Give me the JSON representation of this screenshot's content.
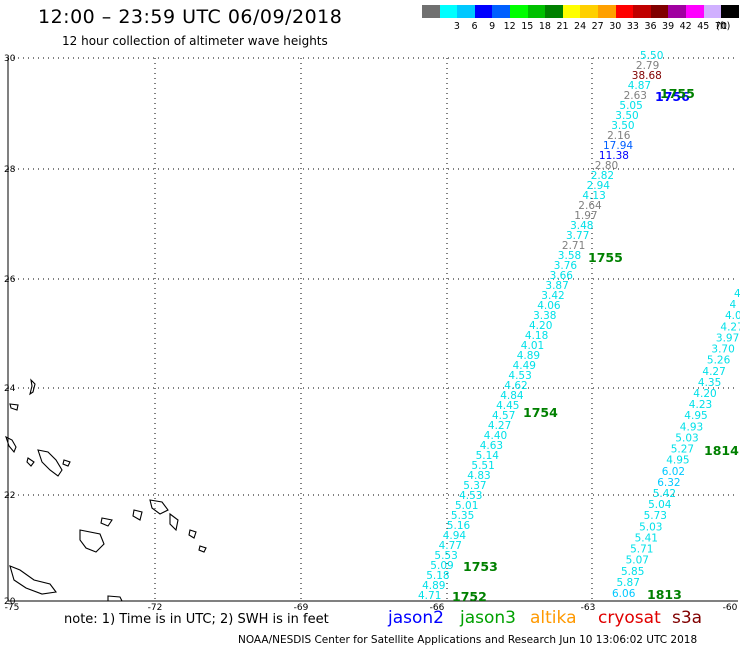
{
  "header": {
    "title": "12:00 – 23:59 UTC 06/09/2018",
    "subtitle": "12 hour collection of altimeter wave heights"
  },
  "colorbar": {
    "unit": "(ft)",
    "items": [
      {
        "label": "",
        "color": "#707070"
      },
      {
        "label": "3",
        "color": "#00ffff"
      },
      {
        "label": "6",
        "color": "#00c8ff"
      },
      {
        "label": "9",
        "color": "#0000ff"
      },
      {
        "label": "12",
        "color": "#0060ff"
      },
      {
        "label": "15",
        "color": "#00ff00"
      },
      {
        "label": "18",
        "color": "#00c000"
      },
      {
        "label": "21",
        "color": "#008000"
      },
      {
        "label": "24",
        "color": "#ffff00"
      },
      {
        "label": "27",
        "color": "#ffd000"
      },
      {
        "label": "30",
        "color": "#ffa000"
      },
      {
        "label": "33",
        "color": "#ff0000"
      },
      {
        "label": "36",
        "color": "#c00000"
      },
      {
        "label": "39",
        "color": "#800000"
      },
      {
        "label": "42",
        "color": "#a000a0"
      },
      {
        "label": "45",
        "color": "#ff00ff"
      },
      {
        "label": "70",
        "color": "#d0b0ff"
      },
      {
        "label": "",
        "color": "#000000"
      }
    ]
  },
  "map": {
    "lon_ticks": [
      "-75",
      "-72",
      "-69",
      "-66",
      "-63",
      "-60"
    ],
    "lat_ticks": [
      "30",
      "28",
      "26",
      "24",
      "22",
      "20"
    ]
  },
  "track_a": [
    {
      "text": "5.50",
      "color": "#00e0e8"
    },
    {
      "text": "2.79",
      "color": "#808080"
    },
    {
      "text": "38.68",
      "color": "#800000"
    },
    {
      "text": "4.87",
      "color": "#00e0e8"
    },
    {
      "text": "2.63",
      "color": "#808080"
    },
    {
      "text": "5.05",
      "color": "#00e0e8"
    },
    {
      "text": "3.50",
      "color": "#00e0e8"
    },
    {
      "text": "3.50",
      "color": "#00e0e8"
    },
    {
      "text": "2.16",
      "color": "#808080"
    },
    {
      "text": "17.94",
      "color": "#0060ff"
    },
    {
      "text": "11.38",
      "color": "#0000ff"
    },
    {
      "text": "2.80",
      "color": "#808080"
    },
    {
      "text": "2.82",
      "color": "#00e0e8"
    },
    {
      "text": "2.94",
      "color": "#00e0e8"
    },
    {
      "text": "4.13",
      "color": "#00e0e8"
    },
    {
      "text": "2.64",
      "color": "#808080"
    },
    {
      "text": "1.97",
      "color": "#808080"
    },
    {
      "text": "3.48",
      "color": "#00e0e8"
    },
    {
      "text": "3.77",
      "color": "#00e0e8"
    },
    {
      "text": "2.71",
      "color": "#808080"
    },
    {
      "text": "3.58",
      "color": "#00e0e8"
    },
    {
      "text": "3.76",
      "color": "#00e0e8"
    },
    {
      "text": "3.66",
      "color": "#00e0e8"
    },
    {
      "text": "3.87",
      "color": "#00e0e8"
    },
    {
      "text": "3.42",
      "color": "#00e0e8"
    },
    {
      "text": "4.06",
      "color": "#00e0e8"
    },
    {
      "text": "3.38",
      "color": "#00e0e8"
    },
    {
      "text": "4.20",
      "color": "#00e0e8"
    },
    {
      "text": "4.18",
      "color": "#00e0e8"
    },
    {
      "text": "4.01",
      "color": "#00e0e8"
    },
    {
      "text": "4.89",
      "color": "#00e0e8"
    },
    {
      "text": "4.49",
      "color": "#00e0e8"
    },
    {
      "text": "4.53",
      "color": "#00e0e8"
    },
    {
      "text": "4.62",
      "color": "#00e0e8"
    },
    {
      "text": "4.84",
      "color": "#00e0e8"
    },
    {
      "text": "4.45",
      "color": "#00e0e8"
    },
    {
      "text": "4.57",
      "color": "#00e0e8"
    },
    {
      "text": "4.27",
      "color": "#00e0e8"
    },
    {
      "text": "4.40",
      "color": "#00e0e8"
    },
    {
      "text": "4.63",
      "color": "#00e0e8"
    },
    {
      "text": "5.14",
      "color": "#00e0e8"
    },
    {
      "text": "5.51",
      "color": "#00e0e8"
    },
    {
      "text": "4.83",
      "color": "#00e0e8"
    },
    {
      "text": "5.37",
      "color": "#00e0e8"
    },
    {
      "text": "4.53",
      "color": "#00e0e8"
    },
    {
      "text": "5.01",
      "color": "#00e0e8"
    },
    {
      "text": "5.35",
      "color": "#00e0e8"
    },
    {
      "text": "5.16",
      "color": "#00e0e8"
    },
    {
      "text": "4.94",
      "color": "#00e0e8"
    },
    {
      "text": "4.77",
      "color": "#00e0e8"
    },
    {
      "text": "5.53",
      "color": "#00e0e8"
    },
    {
      "text": "5.09",
      "color": "#00e0e8"
    },
    {
      "text": "5.18",
      "color": "#00e0e8"
    },
    {
      "text": "4.89",
      "color": "#00e0e8"
    },
    {
      "text": "4.71",
      "color": "#00e0e8"
    }
  ],
  "track_b": [
    {
      "text": "4",
      "color": "#00e0e8"
    },
    {
      "text": "4",
      "color": "#00e0e8"
    },
    {
      "text": "4.07",
      "color": "#00e0e8"
    },
    {
      "text": "4.27",
      "color": "#00e0e8"
    },
    {
      "text": "3.97",
      "color": "#00e0e8"
    },
    {
      "text": "3.70",
      "color": "#00e0e8"
    },
    {
      "text": "5.26",
      "color": "#00e0e8"
    },
    {
      "text": "4.27",
      "color": "#00e0e8"
    },
    {
      "text": "4.35",
      "color": "#00e0e8"
    },
    {
      "text": "4.20",
      "color": "#00e0e8"
    },
    {
      "text": "4.23",
      "color": "#00e0e8"
    },
    {
      "text": "4.95",
      "color": "#00e0e8"
    },
    {
      "text": "4.93",
      "color": "#00e0e8"
    },
    {
      "text": "5.03",
      "color": "#00e0e8"
    },
    {
      "text": "5.27",
      "color": "#00e0e8"
    },
    {
      "text": "4.95",
      "color": "#00e0e8"
    },
    {
      "text": "6.02",
      "color": "#00c8ff"
    },
    {
      "text": "6.32",
      "color": "#00c8ff"
    },
    {
      "text": "5.42",
      "color": "#00e0e8"
    },
    {
      "text": "5.04",
      "color": "#00e0e8"
    },
    {
      "text": "5.73",
      "color": "#00e0e8"
    },
    {
      "text": "5.03",
      "color": "#00e0e8"
    },
    {
      "text": "5.41",
      "color": "#00e0e8"
    },
    {
      "text": "5.71",
      "color": "#00e0e8"
    },
    {
      "text": "5.07",
      "color": "#00e0e8"
    },
    {
      "text": "5.85",
      "color": "#00e0e8"
    },
    {
      "text": "5.87",
      "color": "#00e0e8"
    },
    {
      "text": "6.06",
      "color": "#00c8ff"
    }
  ],
  "time_labels": [
    {
      "text": "1756",
      "color": "#0000ff"
    },
    {
      "text": "1755",
      "color": "#008000"
    },
    {
      "text": "1755",
      "color": "#008000"
    },
    {
      "text": "1754",
      "color": "#008000"
    },
    {
      "text": "1814",
      "color": "#008000"
    },
    {
      "text": "1753",
      "color": "#008000"
    },
    {
      "text": "1752",
      "color": "#008000"
    },
    {
      "text": "1813",
      "color": "#008000"
    }
  ],
  "footer": {
    "note": "note:  1) Time is in UTC;  2) SWH is in feet",
    "satellites": [
      {
        "name": "jason2",
        "color": "#0000ff"
      },
      {
        "name": "jason3",
        "color": "#00a000"
      },
      {
        "name": "altika",
        "color": "#ff9900"
      },
      {
        "name": "cryosat",
        "color": "#e00000"
      },
      {
        "name": "s3a",
        "color": "#800000"
      }
    ],
    "credit": "NOAA/NESDIS Center for Satellite Applications and Research    Jun 10 13:06:02 UTC 2018"
  }
}
